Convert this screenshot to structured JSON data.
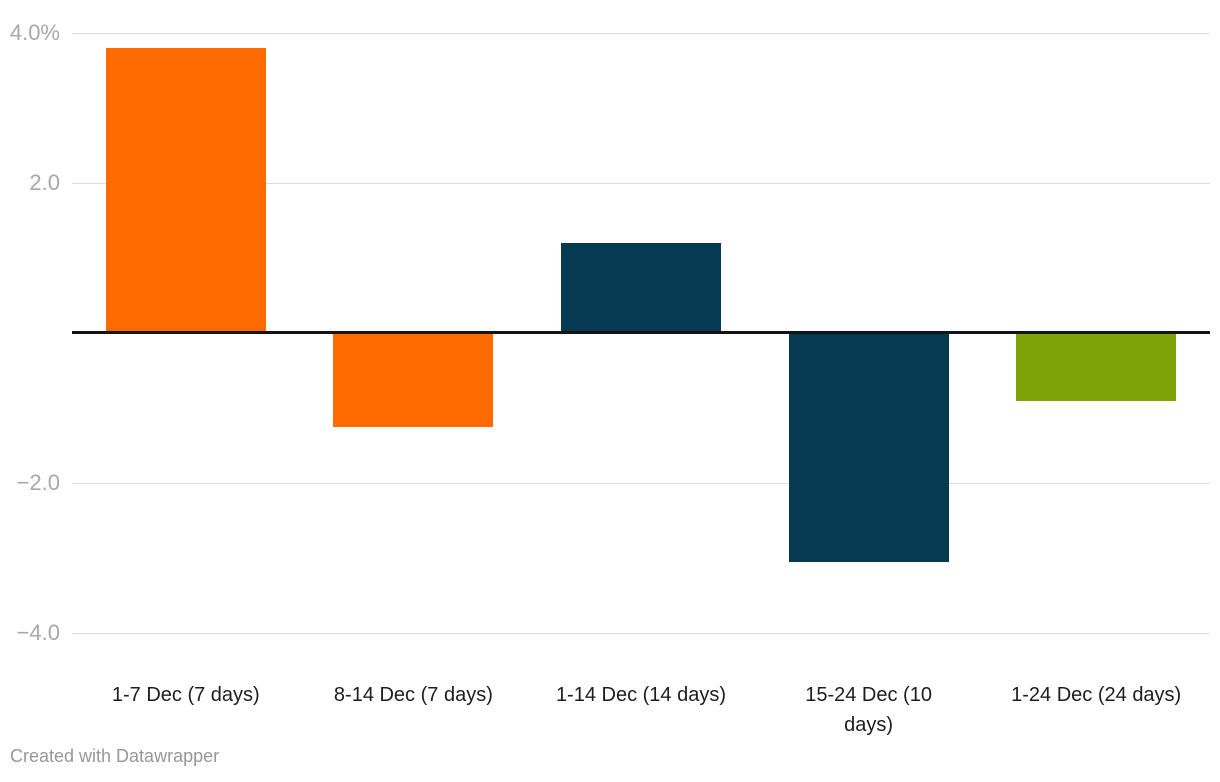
{
  "chart_data": {
    "type": "bar",
    "title": "",
    "xlabel": "",
    "ylabel": "",
    "categories": [
      "1-7 Dec (7 days)",
      "8-14 Dec (7 days)",
      "1-14 Dec (14 days)",
      "15-24 Dec (10 days)",
      "1-24 Dec (24 days)"
    ],
    "values": [
      3.8,
      -1.25,
      1.2,
      -3.05,
      -0.9
    ],
    "bar_colors": [
      "#ff6b00",
      "#ff6b00",
      "#053a52",
      "#053a52",
      "#7ea306"
    ],
    "unit": "%",
    "ylim": [
      -4.0,
      4.0
    ],
    "grid": true,
    "legend": false,
    "baseline_value": 0,
    "y_ticks": [
      {
        "label": "4.0%",
        "value": 4.0
      },
      {
        "label": "2.0",
        "value": 2.0
      },
      {
        "label": "−2.0",
        "value": -2.0
      },
      {
        "label": "−4.0",
        "value": -4.0
      }
    ]
  },
  "x_axis": {
    "ticks": [
      {
        "lines": [
          "1-7 Dec (7 days)",
          ""
        ]
      },
      {
        "lines": [
          "8-14 Dec (7 days)",
          ""
        ]
      },
      {
        "lines": [
          "1-14 Dec (14 days)",
          ""
        ]
      },
      {
        "lines": [
          "15-24 Dec (10",
          "days)"
        ]
      },
      {
        "lines": [
          "1-24 Dec (24 days)",
          ""
        ]
      }
    ]
  },
  "colors": {
    "gridline": "#dddddd",
    "baseline": "#141414",
    "y_label": "#a8a8a8",
    "x_label": "#1d1d1d",
    "credit": "#979797",
    "background": "#ffffff"
  },
  "footer": {
    "credit": "Created with Datawrapper"
  }
}
